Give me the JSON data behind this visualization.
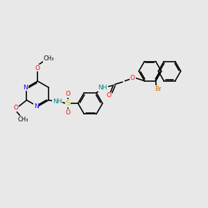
{
  "bg_color": "#e8e8e8",
  "bond_color": "#000000",
  "N_color": "#0000ff",
  "O_color": "#ff0000",
  "S_color": "#cccc00",
  "Br_color": "#cc7700",
  "NH_color": "#008888",
  "lw": 1.2,
  "fs": 6.5,
  "dpi": 100,
  "figsize": [
    3.0,
    3.0
  ],
  "xlim": [
    0,
    10
  ],
  "ylim": [
    0,
    10
  ]
}
